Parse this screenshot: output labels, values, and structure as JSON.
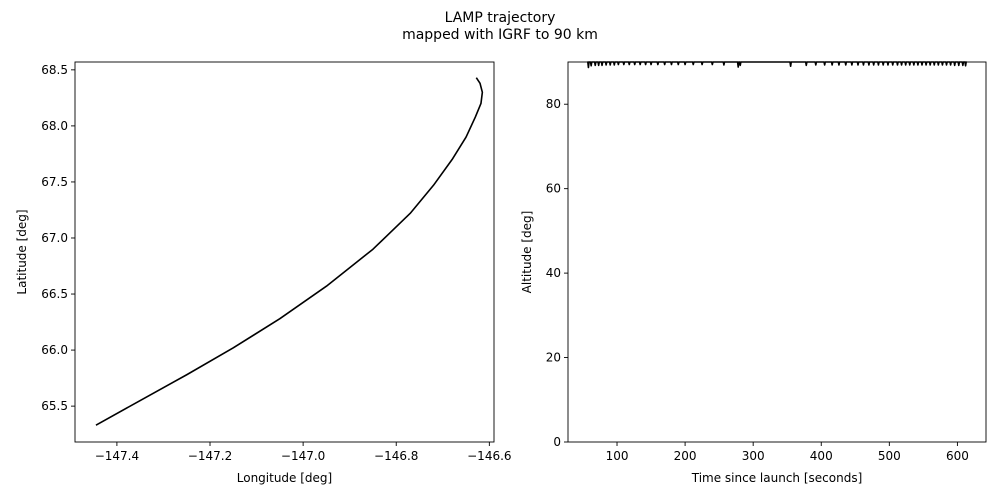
{
  "figure": {
    "title_line1": "LAMP trajectory",
    "title_line2": "mapped with IGRF to 90 km"
  },
  "chart_data": [
    {
      "type": "line",
      "xlabel": "Longitude [deg]",
      "ylabel": "Latitude [deg]",
      "xlim": [
        -147.49,
        -146.59
      ],
      "ylim": [
        65.18,
        68.57
      ],
      "xticks": [
        -147.4,
        -147.2,
        -147.0,
        -146.8,
        -146.6
      ],
      "xtick_labels": [
        "−147.4",
        "−147.2",
        "−147.0",
        "−146.8",
        "−146.6"
      ],
      "yticks": [
        65.5,
        66.0,
        66.5,
        67.0,
        67.5,
        68.0,
        68.5
      ],
      "ytick_labels": [
        "65.5",
        "66.0",
        "66.5",
        "67.0",
        "67.5",
        "68.0",
        "68.5"
      ],
      "series": [
        {
          "color": "#000000",
          "x": [
            -147.445,
            -147.35,
            -147.25,
            -147.15,
            -147.05,
            -146.95,
            -146.85,
            -146.77,
            -146.72,
            -146.68,
            -146.65,
            -146.63,
            -146.618,
            -146.615,
            -146.62,
            -146.628
          ],
          "y": [
            65.33,
            65.55,
            65.78,
            66.02,
            66.28,
            66.57,
            66.9,
            67.22,
            67.47,
            67.7,
            67.9,
            68.08,
            68.2,
            68.3,
            68.38,
            68.43
          ]
        }
      ]
    },
    {
      "type": "line",
      "xlabel": "Time since launch [seconds]",
      "ylabel": "Altitude [deg]",
      "xlim": [
        28,
        642
      ],
      "ylim": [
        0,
        90
      ],
      "xticks": [
        100,
        200,
        300,
        400,
        500,
        600
      ],
      "xtick_labels": [
        "100",
        "200",
        "300",
        "400",
        "500",
        "600"
      ],
      "yticks": [
        0,
        20,
        40,
        60,
        80
      ],
      "ytick_labels": [
        "0",
        "20",
        "40",
        "60",
        "80"
      ],
      "series": [
        {
          "color": "#000000",
          "baseline": 90,
          "t_range": [
            58,
            612
          ],
          "dips": [
            [
              58,
              88.7
            ],
            [
              62,
              89.1
            ],
            [
              68,
              89.2
            ],
            [
              73,
              89.2
            ],
            [
              78,
              89.2
            ],
            [
              84,
              89.3
            ],
            [
              90,
              89.3
            ],
            [
              96,
              89.3
            ],
            [
              102,
              89.4
            ],
            [
              110,
              89.4
            ],
            [
              118,
              89.4
            ],
            [
              126,
              89.4
            ],
            [
              134,
              89.4
            ],
            [
              142,
              89.4
            ],
            [
              150,
              89.4
            ],
            [
              160,
              89.4
            ],
            [
              170,
              89.4
            ],
            [
              180,
              89.4
            ],
            [
              190,
              89.4
            ],
            [
              200,
              89.4
            ],
            [
              212,
              89.4
            ],
            [
              225,
              89.4
            ],
            [
              240,
              89.4
            ],
            [
              257,
              89.3
            ],
            [
              278,
              88.8
            ],
            [
              281,
              89.2
            ],
            [
              355,
              89.0
            ],
            [
              378,
              89.2
            ],
            [
              392,
              89.3
            ],
            [
              405,
              89.3
            ],
            [
              416,
              89.3
            ],
            [
              426,
              89.3
            ],
            [
              436,
              89.3
            ],
            [
              445,
              89.3
            ],
            [
              454,
              89.3
            ],
            [
              462,
              89.3
            ],
            [
              470,
              89.3
            ],
            [
              477,
              89.3
            ],
            [
              484,
              89.3
            ],
            [
              491,
              89.3
            ],
            [
              498,
              89.3
            ],
            [
              505,
              89.3
            ],
            [
              512,
              89.3
            ],
            [
              518,
              89.3
            ],
            [
              524,
              89.3
            ],
            [
              530,
              89.3
            ],
            [
              536,
              89.3
            ],
            [
              542,
              89.3
            ],
            [
              548,
              89.3
            ],
            [
              554,
              89.3
            ],
            [
              560,
              89.3
            ],
            [
              566,
              89.3
            ],
            [
              572,
              89.3
            ],
            [
              578,
              89.3
            ],
            [
              584,
              89.3
            ],
            [
              590,
              89.3
            ],
            [
              596,
              89.2
            ],
            [
              602,
              89.2
            ],
            [
              608,
              89.2
            ],
            [
              612,
              89.1
            ]
          ]
        }
      ]
    }
  ]
}
